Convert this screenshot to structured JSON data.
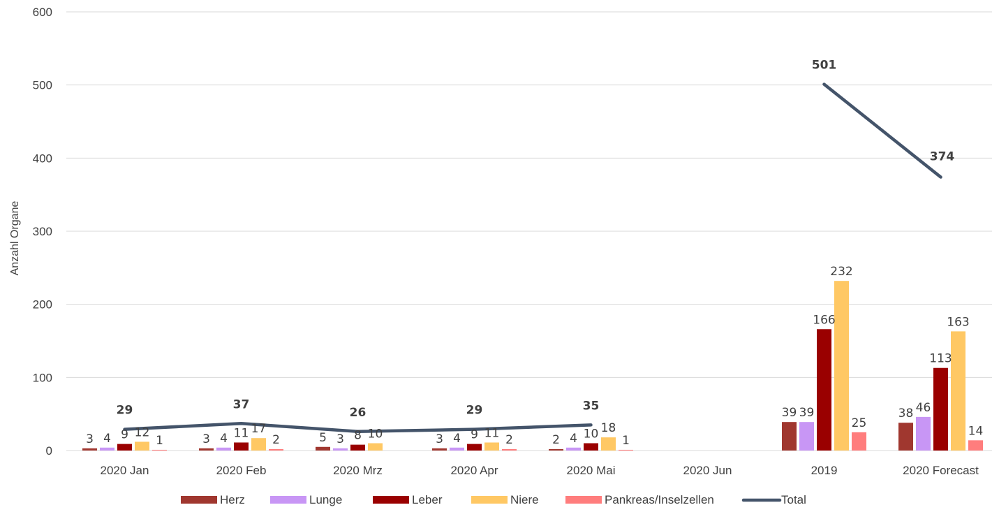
{
  "chart_data": {
    "type": "bar",
    "ylabel": "Anzahl Organe",
    "xlabel": "",
    "ylim": [
      0,
      600
    ],
    "yticks": [
      0,
      100,
      200,
      300,
      400,
      500,
      600
    ],
    "grid": true,
    "legend_position": "bottom",
    "categories": [
      "2020 Jan",
      "2020 Feb",
      "2020 Mrz",
      "2020 Apr",
      "2020 Mai",
      "2020 Jun",
      "2019",
      "2020 Forecast"
    ],
    "series": [
      {
        "name": "Herz",
        "kind": "bar",
        "color": "#A0372F",
        "values": [
          3,
          3,
          5,
          3,
          2,
          null,
          39,
          38
        ]
      },
      {
        "name": "Lunge",
        "kind": "bar",
        "color": "#C896F5",
        "values": [
          4,
          4,
          3,
          4,
          4,
          null,
          39,
          46
        ]
      },
      {
        "name": "Leber",
        "kind": "bar",
        "color": "#9A0000",
        "values": [
          9,
          11,
          8,
          9,
          10,
          null,
          166,
          113
        ]
      },
      {
        "name": "Niere",
        "kind": "bar",
        "color": "#FFC864",
        "values": [
          12,
          17,
          10,
          11,
          18,
          null,
          232,
          163
        ]
      },
      {
        "name": "Pankreas/Inselzellen",
        "kind": "bar",
        "color": "#FF7D7D",
        "values": [
          1,
          2,
          0,
          2,
          1,
          null,
          25,
          14
        ]
      },
      {
        "name": "Total",
        "kind": "line",
        "color": "#44546A",
        "values": [
          29,
          37,
          26,
          29,
          35,
          null,
          501,
          374
        ]
      }
    ],
    "bar_labels": [
      [
        "3",
        "4",
        "9",
        "12",
        "1"
      ],
      [
        "3",
        "4",
        "11",
        "17",
        "2"
      ],
      [
        "5",
        "3",
        "8",
        "10",
        ""
      ],
      [
        "3",
        "4",
        "9",
        "11",
        "2"
      ],
      [
        "2",
        "4",
        "10",
        "18",
        "1"
      ],
      [
        "",
        "",
        "",
        "",
        ""
      ],
      [
        "39",
        "39",
        "166",
        "232",
        "25"
      ],
      [
        "38",
        "46",
        "113",
        "163",
        "14"
      ]
    ],
    "total_labels": [
      "29",
      "37",
      "26",
      "29",
      "35",
      "",
      "501",
      "374"
    ]
  }
}
